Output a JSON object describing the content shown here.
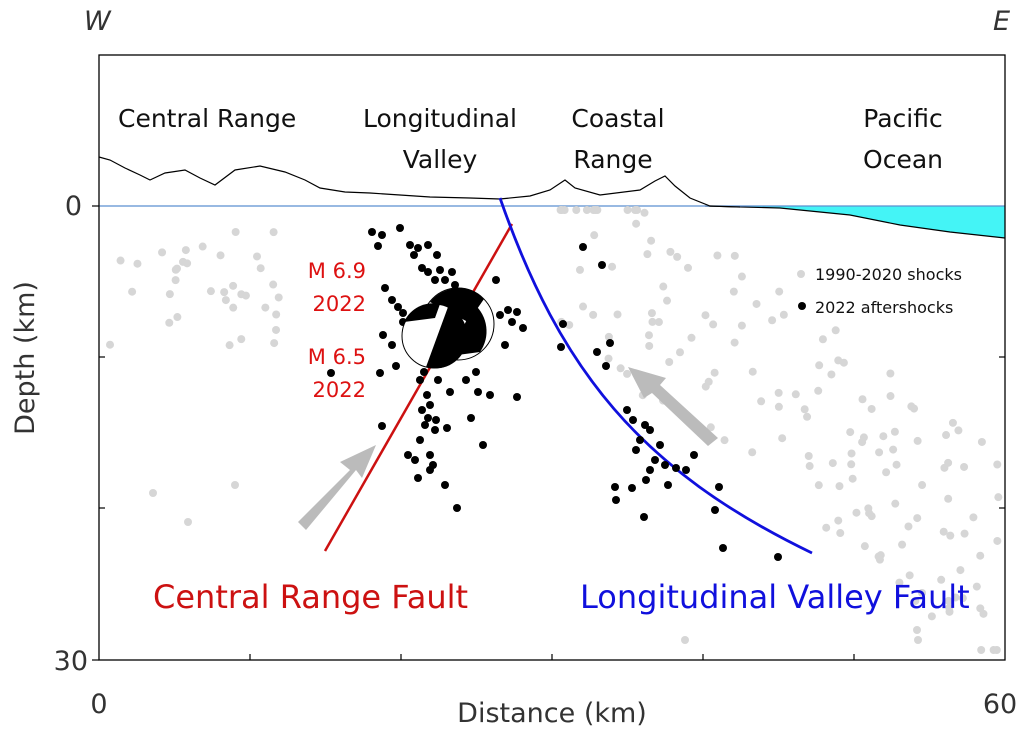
{
  "compass": {
    "west": "W",
    "east": "E"
  },
  "regions": {
    "central_range": "Central Range",
    "longitudinal_valley": [
      "Longitudinal",
      "Valley"
    ],
    "coastal_range": [
      "Coastal",
      "Range"
    ],
    "pacific_ocean": [
      "Pacific",
      "Ocean"
    ]
  },
  "axes": {
    "y_label": "Depth (km)",
    "y_min": "0",
    "y_max": "30",
    "x_label": "Distance (km)",
    "x_min": "0",
    "x_max": "60"
  },
  "events": {
    "mainshock": [
      "M 6.9",
      "2022"
    ],
    "foreshock": [
      "M 6.5",
      "2022"
    ]
  },
  "faults": {
    "central_range_fault": "Central Range Fault",
    "longitudinal_valley_fault": "Longitudinal Valley Fault"
  },
  "legend": {
    "background": "1990-2020 shocks",
    "aftershocks": "2022 aftershocks"
  },
  "colors": {
    "central_range_fault": "#cc1111",
    "longitudinal_valley_fault": "#1010dd",
    "ocean": "#44f4f6",
    "sea_level": "#5b8fd0",
    "background_shocks": "#d6d6d6",
    "aftershocks": "#000000",
    "arrows": "#bbbbbb"
  }
}
